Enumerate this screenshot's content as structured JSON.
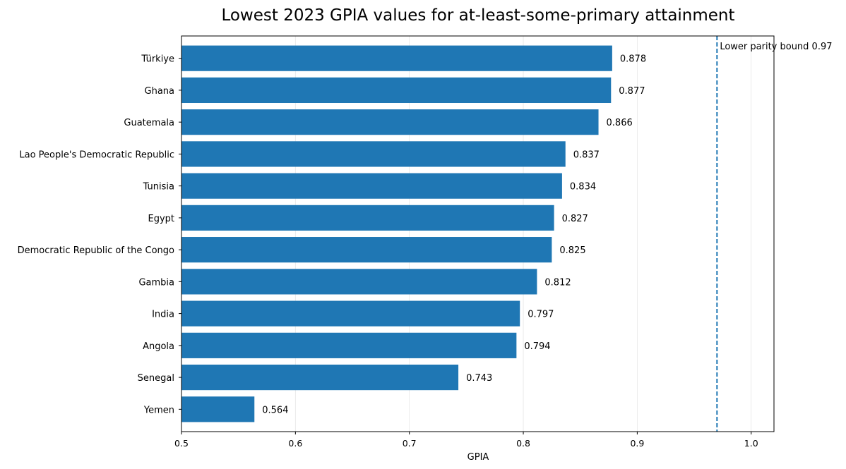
{
  "chart_data": {
    "type": "bar",
    "orientation": "horizontal",
    "title": "Lowest 2023 GPIA values for at-least-some-primary attainment",
    "xlabel": "GPIA",
    "ylabel": "",
    "xlim": [
      0.5,
      1.02
    ],
    "xticks": [
      "0.5",
      "0.6",
      "0.7",
      "0.8",
      "0.9",
      "1.0"
    ],
    "grid": "x",
    "bar_color": "#1f77b4",
    "categories": [
      "Türkiye",
      "Ghana",
      "Guatemala",
      "Lao People's Democratic Republic",
      "Tunisia",
      "Egypt",
      "Democratic Republic of the Congo",
      "Gambia",
      "India",
      "Angola",
      "Senegal",
      "Yemen"
    ],
    "values": [
      0.878,
      0.877,
      0.866,
      0.837,
      0.834,
      0.827,
      0.825,
      0.812,
      0.797,
      0.794,
      0.743,
      0.564
    ],
    "value_labels": [
      "0.878",
      "0.877",
      "0.866",
      "0.837",
      "0.834",
      "0.827",
      "0.825",
      "0.812",
      "0.797",
      "0.794",
      "0.743",
      "0.564"
    ],
    "reference_line": {
      "value": 0.97,
      "label": "Lower parity bound 0.97",
      "style": "dashed",
      "color": "#1f77b4"
    }
  }
}
